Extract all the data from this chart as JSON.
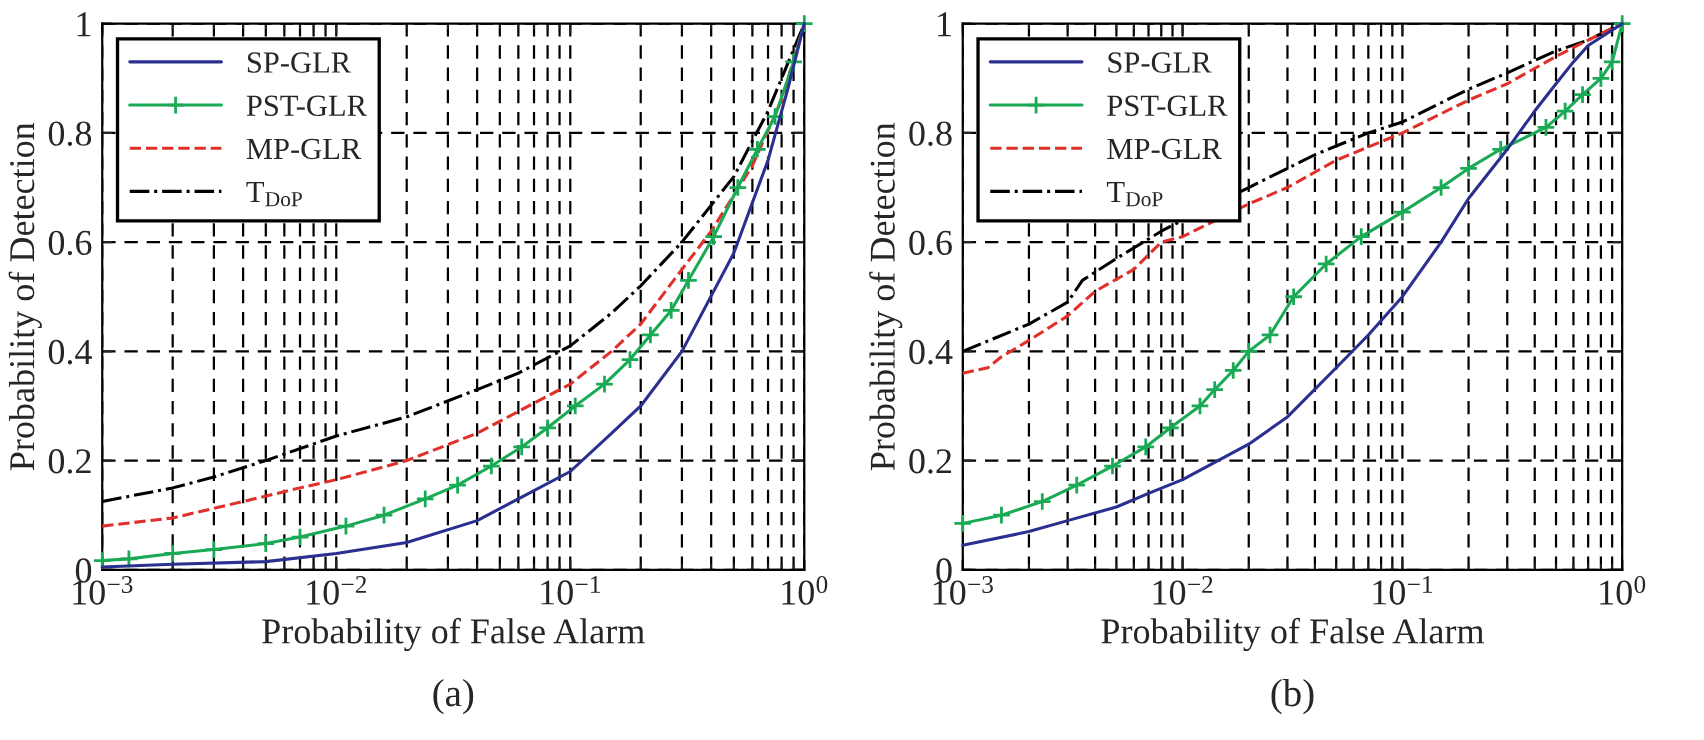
{
  "chart_data": [
    {
      "type": "line",
      "xlabel": "Probability of False Alarm",
      "ylabel": "Probability of Detection",
      "log": "x",
      "grid": true,
      "legend": "top left",
      "xlim": [
        0.001,
        1
      ],
      "xticks": [
        {
          "value": 0.001,
          "label": "10$^{−3}$"
        },
        {
          "value": 0.01,
          "label": "10$^{−2}$"
        },
        {
          "value": 0.1,
          "label": "10$^{−1}$"
        },
        {
          "value": 1,
          "label": "10$^{0}$"
        }
      ],
      "ylim": [
        0,
        1
      ],
      "yticks": [
        0,
        0.2,
        0.4,
        0.6,
        0.8,
        1
      ],
      "annotations": [
        "(a)"
      ],
      "series": [
        {
          "name": "SP-GLR",
          "color": "#2b2f8f",
          "line_style": "solid",
          "marker": "none",
          "x": [
            0.001,
            0.002,
            0.005,
            0.01,
            0.02,
            0.04,
            0.06,
            0.1,
            0.15,
            0.2,
            0.3,
            0.5,
            0.7,
            0.85,
            1.0
          ],
          "values": [
            0.005,
            0.01,
            0.015,
            0.03,
            0.05,
            0.09,
            0.13,
            0.18,
            0.25,
            0.3,
            0.4,
            0.58,
            0.75,
            0.88,
            1.0
          ]
        },
        {
          "name": "PST-GLR",
          "color": "#1aaa55",
          "line_style": "solid",
          "marker": "cross",
          "x": [
            0.001,
            0.0013,
            0.002,
            0.003,
            0.005,
            0.007,
            0.011,
            0.016,
            0.024,
            0.033,
            0.046,
            0.062,
            0.08,
            0.105,
            0.14,
            0.18,
            0.22,
            0.27,
            0.32,
            0.41,
            0.52,
            0.63,
            0.75,
            0.9,
            1.0
          ],
          "values": [
            0.017,
            0.02,
            0.03,
            0.037,
            0.048,
            0.06,
            0.08,
            0.1,
            0.13,
            0.155,
            0.19,
            0.225,
            0.26,
            0.3,
            0.34,
            0.385,
            0.43,
            0.475,
            0.53,
            0.61,
            0.7,
            0.77,
            0.83,
            0.93,
            1.0
          ]
        },
        {
          "name": "MP-GLR",
          "color": "#e0302a",
          "line_style": "dashed",
          "marker": "none",
          "x": [
            0.001,
            0.002,
            0.004,
            0.007,
            0.01,
            0.02,
            0.04,
            0.06,
            0.1,
            0.15,
            0.2,
            0.3,
            0.4,
            0.6,
            0.8,
            1.0
          ],
          "values": [
            0.08,
            0.095,
            0.125,
            0.15,
            0.165,
            0.2,
            0.25,
            0.29,
            0.34,
            0.4,
            0.45,
            0.55,
            0.62,
            0.74,
            0.86,
            1.0
          ]
        },
        {
          "name": "T$_{DoP}$",
          "color": "#000000",
          "line_style": "dashdot",
          "marker": "none",
          "x": [
            0.001,
            0.002,
            0.003,
            0.005,
            0.01,
            0.02,
            0.04,
            0.06,
            0.1,
            0.15,
            0.2,
            0.3,
            0.5,
            0.7,
            1.0
          ],
          "values": [
            0.125,
            0.15,
            0.17,
            0.2,
            0.245,
            0.28,
            0.33,
            0.36,
            0.41,
            0.47,
            0.52,
            0.6,
            0.72,
            0.84,
            1.0
          ]
        }
      ]
    },
    {
      "type": "line",
      "xlabel": "Probability of False Alarm",
      "ylabel": "Probability of Detection",
      "log": "x",
      "grid": true,
      "legend": "top left",
      "xlim": [
        0.001,
        1
      ],
      "xticks": [
        {
          "value": 0.001,
          "label": "10$^{−3}$"
        },
        {
          "value": 0.01,
          "label": "10$^{−2}$"
        },
        {
          "value": 0.1,
          "label": "10$^{−1}$"
        },
        {
          "value": 1,
          "label": "10$^{0}$"
        }
      ],
      "ylim": [
        0,
        1
      ],
      "yticks": [
        0,
        0.2,
        0.4,
        0.6,
        0.8,
        1
      ],
      "annotations": [
        "(b)"
      ],
      "series": [
        {
          "name": "SP-GLR",
          "color": "#2b2f8f",
          "line_style": "solid",
          "marker": "none",
          "x": [
            0.001,
            0.002,
            0.003,
            0.005,
            0.007,
            0.01,
            0.02,
            0.03,
            0.05,
            0.07,
            0.1,
            0.15,
            0.2,
            0.3,
            0.4,
            0.5,
            0.6,
            0.7,
            1.0
          ],
          "values": [
            0.045,
            0.07,
            0.09,
            0.115,
            0.14,
            0.165,
            0.23,
            0.28,
            0.37,
            0.43,
            0.5,
            0.6,
            0.68,
            0.77,
            0.84,
            0.89,
            0.93,
            0.96,
            1.0
          ]
        },
        {
          "name": "PST-GLR",
          "color": "#1aaa55",
          "line_style": "solid",
          "marker": "cross",
          "x": [
            0.001,
            0.0015,
            0.0023,
            0.0033,
            0.0048,
            0.0068,
            0.0088,
            0.012,
            0.014,
            0.017,
            0.02,
            0.025,
            0.032,
            0.045,
            0.065,
            0.1,
            0.15,
            0.2,
            0.28,
            0.45,
            0.55,
            0.66,
            0.8,
            0.9,
            1.0
          ],
          "values": [
            0.085,
            0.1,
            0.125,
            0.155,
            0.19,
            0.225,
            0.26,
            0.3,
            0.33,
            0.365,
            0.4,
            0.43,
            0.5,
            0.56,
            0.61,
            0.655,
            0.7,
            0.735,
            0.77,
            0.81,
            0.84,
            0.87,
            0.9,
            0.93,
            1.0
          ]
        },
        {
          "name": "MP-GLR",
          "color": "#e0302a",
          "line_style": "dashed",
          "marker": "none",
          "x": [
            0.001,
            0.0013,
            0.0015,
            0.002,
            0.003,
            0.004,
            0.006,
            0.008,
            0.01,
            0.02,
            0.03,
            0.05,
            0.1,
            0.2,
            0.3,
            0.5,
            0.7,
            1.0
          ],
          "values": [
            0.36,
            0.37,
            0.39,
            0.42,
            0.465,
            0.51,
            0.55,
            0.6,
            0.61,
            0.67,
            0.7,
            0.75,
            0.8,
            0.86,
            0.89,
            0.94,
            0.97,
            1.0
          ]
        },
        {
          "name": "T$_{DoP}$",
          "color": "#000000",
          "line_style": "dashdot",
          "marker": "none",
          "x": [
            0.001,
            0.002,
            0.003,
            0.0035,
            0.005,
            0.008,
            0.01,
            0.02,
            0.04,
            0.07,
            0.1,
            0.2,
            0.3,
            0.5,
            0.7,
            1.0
          ],
          "values": [
            0.4,
            0.45,
            0.49,
            0.53,
            0.57,
            0.62,
            0.64,
            0.7,
            0.76,
            0.8,
            0.82,
            0.88,
            0.91,
            0.95,
            0.97,
            1.0
          ]
        }
      ]
    }
  ]
}
